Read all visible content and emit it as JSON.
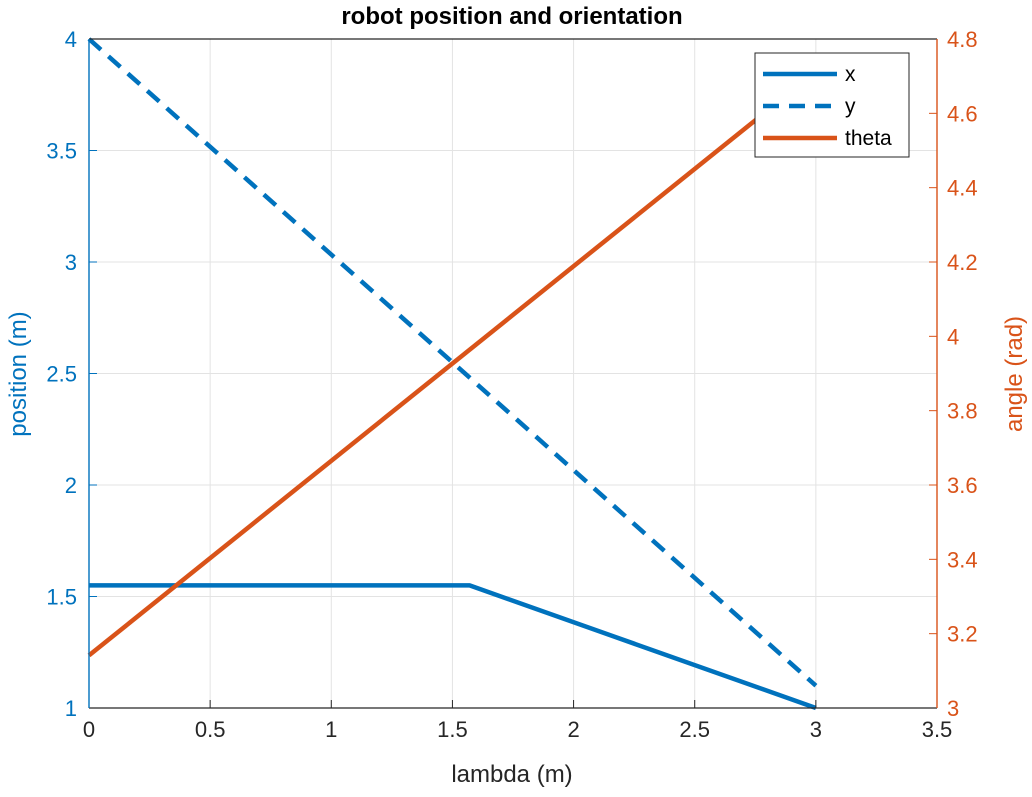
{
  "chart_data": {
    "type": "line",
    "title": "robot position and orientation",
    "xlabel": "lambda (m)",
    "ylabel_left": "position (m)",
    "ylabel_right": "angle (rad)",
    "xlim": [
      0,
      3.5
    ],
    "ylim_left": [
      1,
      4
    ],
    "ylim_right": [
      3,
      4.8
    ],
    "grid": true,
    "legend_position": "top-right",
    "x_ticks": [
      "0",
      "0.5",
      "1",
      "1.5",
      "2",
      "2.5",
      "3",
      "3.5"
    ],
    "y_left_ticks": [
      "1",
      "1.5",
      "2",
      "2.5",
      "3",
      "3.5",
      "4"
    ],
    "y_right_ticks": [
      "3",
      "3.2",
      "3.4",
      "3.6",
      "3.8",
      "4",
      "4.2",
      "4.4",
      "4.6",
      "4.8"
    ],
    "colors": {
      "left_axis": "#0072BD",
      "right_axis": "#D95319",
      "grid": "#e3e3e3"
    },
    "series": [
      {
        "name": "x",
        "axis": "left",
        "style": "solid",
        "color": "#0072BD",
        "x": [
          0,
          1.5708,
          3.0
        ],
        "y": [
          1.55,
          1.55,
          1.0
        ]
      },
      {
        "name": "y",
        "axis": "left",
        "style": "dashed",
        "color": "#0072BD",
        "x": [
          0,
          3.0
        ],
        "y": [
          4.0,
          1.1
        ]
      },
      {
        "name": "theta",
        "axis": "right",
        "style": "solid",
        "color": "#D95319",
        "x": [
          0,
          3.0
        ],
        "y": [
          3.1416,
          4.7124
        ]
      }
    ]
  }
}
